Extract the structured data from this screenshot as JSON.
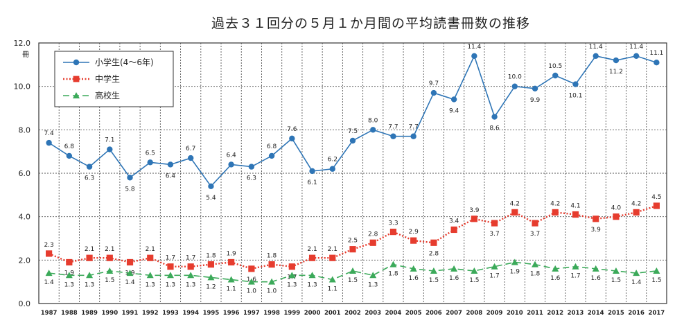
{
  "chart_data": {
    "type": "line",
    "title": "過去３１回分の５月１か月間の平均読書冊数の推移",
    "unit_label": "冊",
    "ylim": [
      0,
      12
    ],
    "yticks": [
      "0.0",
      "2.0",
      "4.0",
      "6.0",
      "8.0",
      "10.0",
      "12.0"
    ],
    "ytick_values": [
      0,
      2,
      4,
      6,
      8,
      10,
      12
    ],
    "grid": true,
    "legend_position": "top-left",
    "x": [
      "1987",
      "1988",
      "1989",
      "1990",
      "1991",
      "1992",
      "1993",
      "1994",
      "1995",
      "1996",
      "1997",
      "1998",
      "1999",
      "2000",
      "2001",
      "2002",
      "2003",
      "2004",
      "2005",
      "2006",
      "2007",
      "2008",
      "2009",
      "2010",
      "2011",
      "2012",
      "2013",
      "2014",
      "2015",
      "2016",
      "2017"
    ],
    "series": [
      {
        "name": "小学生(4～6年)",
        "color": "#2e75b6",
        "marker": "circle",
        "line_style": "solid",
        "values": [
          7.4,
          6.8,
          6.3,
          7.1,
          5.8,
          6.5,
          6.4,
          6.7,
          5.4,
          6.4,
          6.3,
          6.8,
          7.6,
          6.1,
          6.2,
          7.5,
          8.0,
          7.7,
          7.7,
          9.7,
          9.4,
          11.4,
          8.6,
          10.0,
          9.9,
          10.5,
          10.1,
          11.4,
          11.2,
          11.4,
          11.1
        ],
        "labels": [
          "7.4",
          "6.8",
          "6.3",
          "7.1",
          "5.8",
          "6.5",
          "6.4",
          "6.7",
          "5.4",
          "6.4",
          "6.3",
          "6.8",
          "7.6",
          "6.1",
          "6.2",
          "7.5",
          "8.0",
          "7.7",
          "7.7",
          "9.7",
          "9.4",
          "11.4",
          "8.6",
          "10.0",
          "9.9",
          "10.5",
          "10.1",
          "11.4",
          "11.2",
          "11.4",
          "11.1"
        ]
      },
      {
        "name": "中学生",
        "color": "#e63c2e",
        "marker": "square",
        "line_style": "dotted",
        "values": [
          2.3,
          1.9,
          2.1,
          2.1,
          1.9,
          2.1,
          1.7,
          1.7,
          1.8,
          1.9,
          1.6,
          1.8,
          1.7,
          2.1,
          2.1,
          2.5,
          2.8,
          3.3,
          2.9,
          2.8,
          3.4,
          3.9,
          3.7,
          4.2,
          3.7,
          4.2,
          4.1,
          3.9,
          4.0,
          4.2,
          4.5
        ],
        "labels": [
          "2.3",
          "1.9",
          "2.1",
          "2.1",
          "1.9",
          "2.1",
          "1.7",
          "1.7",
          "1.8",
          "1.9",
          "1.6",
          "1.8",
          "1.7",
          "2.1",
          "2.1",
          "2.5",
          "2.8",
          "3.3",
          "2.9",
          "2.8",
          "3.4",
          "3.9",
          "3.7",
          "4.2",
          "3.7",
          "4.2",
          "4.1",
          "3.9",
          "4.0",
          "4.2",
          "4.5"
        ]
      },
      {
        "name": "高校生",
        "color": "#3caa5a",
        "marker": "triangle",
        "line_style": "dashed",
        "values": [
          1.4,
          1.3,
          1.3,
          1.5,
          1.4,
          1.3,
          1.3,
          1.3,
          1.2,
          1.1,
          1.0,
          1.0,
          1.3,
          1.3,
          1.1,
          1.5,
          1.3,
          1.8,
          1.6,
          1.5,
          1.6,
          1.5,
          1.7,
          1.9,
          1.8,
          1.6,
          1.7,
          1.6,
          1.5,
          1.4,
          1.5
        ],
        "labels": [
          "1.4",
          "1.3",
          "1.3",
          "1.5",
          "1.4",
          "1.3",
          "1.3",
          "1.3",
          "1.2",
          "1.1",
          "1.0",
          "1.0",
          "1.3",
          "1.3",
          "1.1",
          "1.5",
          "1.3",
          "1.8",
          "1.6",
          "1.5",
          "1.6",
          "1.5",
          "1.7",
          "1.9",
          "1.8",
          "1.6",
          "1.7",
          "1.6",
          "1.5",
          "1.4",
          "1.5"
        ]
      }
    ]
  }
}
